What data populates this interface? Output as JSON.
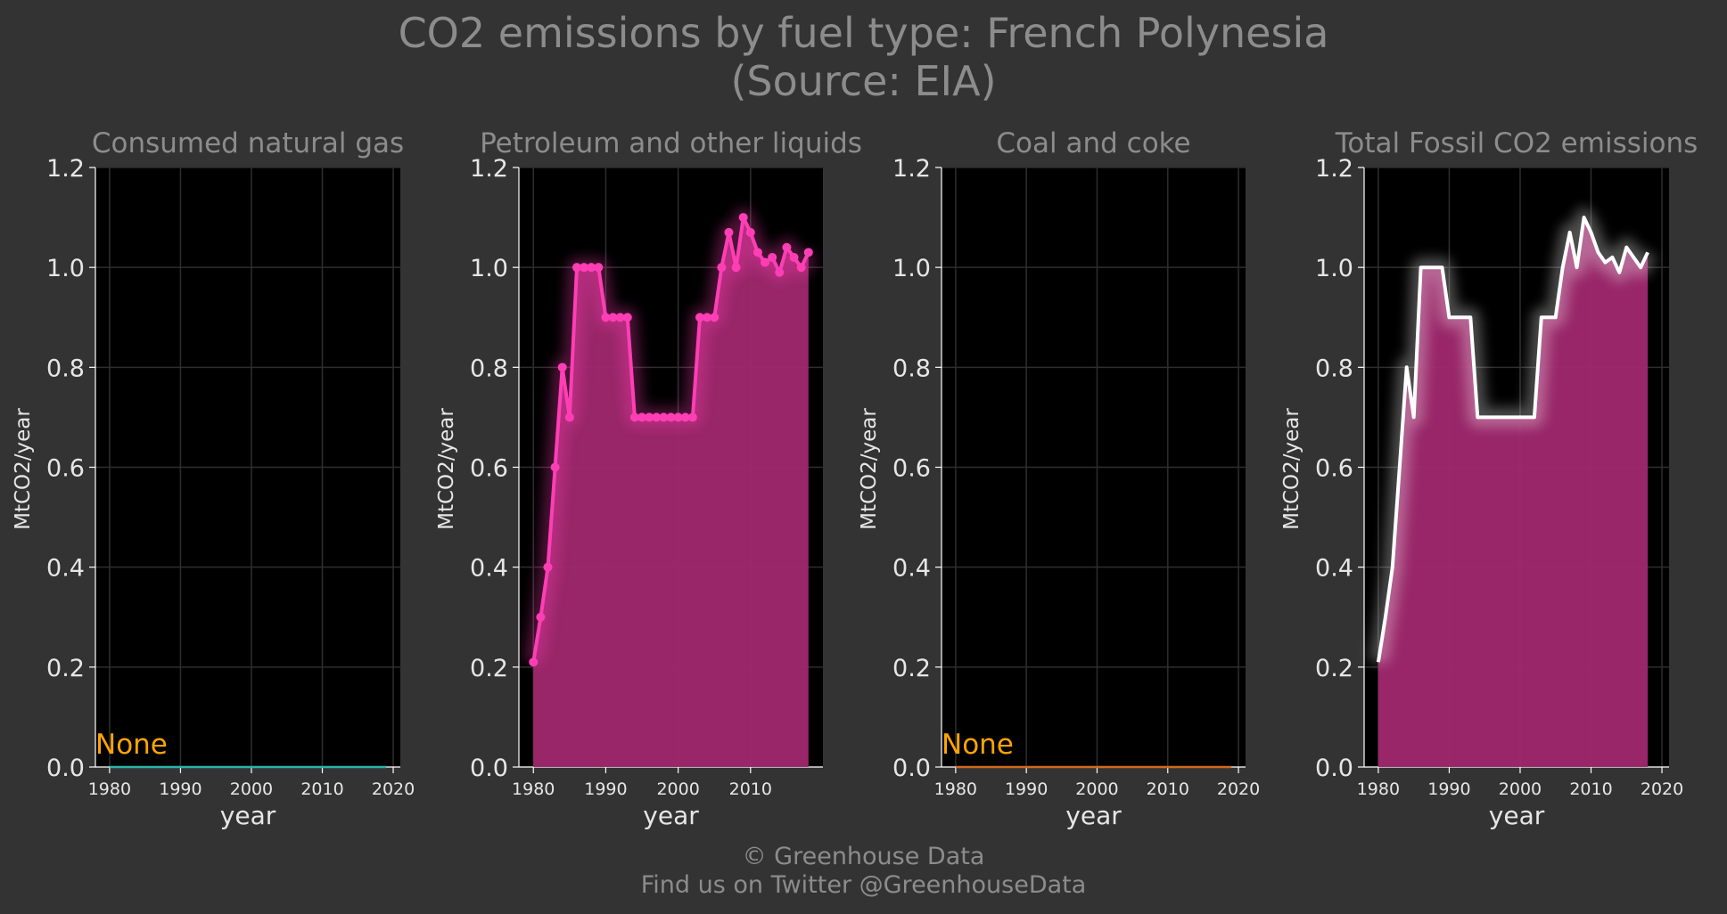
{
  "page": {
    "title": "CO2 emissions by fuel type: French Polynesia",
    "subtitle": "(Source: EIA)",
    "footer_line1": "© Greenhouse Data",
    "footer_line2": "Find us on Twitter @GreenhouseData"
  },
  "colors": {
    "background": "#333333",
    "plot_bg": "#000000",
    "grid": "#2e2e2e",
    "text": "#8c8c8c",
    "tick_text": "#e6e6e6",
    "petroleum": "#ff3eb5",
    "area_fill": "#a0286e",
    "gas_line": "#2ab5a5",
    "coal_line": "#d2691e",
    "none_label": "#ffa500",
    "total_line": "#ffffff"
  },
  "chart_data": [
    {
      "type": "line",
      "title": "Consumed natural gas",
      "xlabel": "year",
      "ylabel": "MtCO2/year",
      "xlim": [
        1978,
        2021
      ],
      "ylim": [
        0,
        1.2
      ],
      "xticks": [
        1980,
        1990,
        2000,
        2010,
        2020
      ],
      "yticks": [
        "0.0",
        "0.2",
        "0.4",
        "0.6",
        "0.8",
        "1.0",
        "1.2"
      ],
      "grid": true,
      "annotation": "None",
      "series": [
        {
          "x": [
            1980,
            2019
          ],
          "y": [
            0,
            0
          ],
          "color": "#2ab5a5"
        }
      ]
    },
    {
      "type": "area",
      "title": "Petroleum and other liquids",
      "xlabel": "year",
      "ylabel": "MtCO2/year",
      "xlim": [
        1978,
        2020
      ],
      "ylim": [
        0,
        1.2
      ],
      "xticks": [
        1980,
        1990,
        2000,
        2010
      ],
      "yticks": [
        "0.0",
        "0.2",
        "0.4",
        "0.6",
        "0.8",
        "1.0",
        "1.2"
      ],
      "grid": true,
      "series": [
        {
          "x": [
            1980,
            1981,
            1982,
            1983,
            1984,
            1985,
            1986,
            1987,
            1988,
            1989,
            1990,
            1991,
            1992,
            1993,
            1994,
            1995,
            1996,
            1997,
            1998,
            1999,
            2000,
            2001,
            2002,
            2003,
            2004,
            2005,
            2006,
            2007,
            2008,
            2009,
            2010,
            2011,
            2012,
            2013,
            2014,
            2015,
            2016,
            2017,
            2018
          ],
          "y": [
            0.21,
            0.3,
            0.4,
            0.6,
            0.8,
            0.7,
            1.0,
            1.0,
            1.0,
            1.0,
            0.9,
            0.9,
            0.9,
            0.9,
            0.7,
            0.7,
            0.7,
            0.7,
            0.7,
            0.7,
            0.7,
            0.7,
            0.7,
            0.9,
            0.9,
            0.9,
            1.0,
            1.07,
            1.0,
            1.1,
            1.07,
            1.03,
            1.01,
            1.02,
            0.99,
            1.04,
            1.02,
            1.0,
            1.03
          ],
          "color": "#ff3eb5",
          "markers": true
        }
      ]
    },
    {
      "type": "line",
      "title": "Coal and coke",
      "xlabel": "year",
      "ylabel": "MtCO2/year",
      "xlim": [
        1978,
        2021
      ],
      "ylim": [
        0,
        1.2
      ],
      "xticks": [
        1980,
        1990,
        2000,
        2010,
        2020
      ],
      "yticks": [
        "0.0",
        "0.2",
        "0.4",
        "0.6",
        "0.8",
        "1.0",
        "1.2"
      ],
      "grid": true,
      "annotation": "None",
      "series": [
        {
          "x": [
            1980,
            2019
          ],
          "y": [
            0,
            0
          ],
          "color": "#d2691e"
        }
      ]
    },
    {
      "type": "area",
      "title": "Total Fossil CO2 emissions",
      "xlabel": "year",
      "ylabel": "MtCO2/year",
      "xlim": [
        1978,
        2021
      ],
      "ylim": [
        0,
        1.2
      ],
      "xticks": [
        1980,
        1990,
        2000,
        2010,
        2020
      ],
      "yticks": [
        "0.0",
        "0.2",
        "0.4",
        "0.6",
        "0.8",
        "1.0",
        "1.2"
      ],
      "grid": true,
      "series": [
        {
          "x": [
            1980,
            1981,
            1982,
            1983,
            1984,
            1985,
            1986,
            1987,
            1988,
            1989,
            1990,
            1991,
            1992,
            1993,
            1994,
            1995,
            1996,
            1997,
            1998,
            1999,
            2000,
            2001,
            2002,
            2003,
            2004,
            2005,
            2006,
            2007,
            2008,
            2009,
            2010,
            2011,
            2012,
            2013,
            2014,
            2015,
            2016,
            2017,
            2018
          ],
          "y": [
            0.21,
            0.3,
            0.4,
            0.6,
            0.8,
            0.7,
            1.0,
            1.0,
            1.0,
            1.0,
            0.9,
            0.9,
            0.9,
            0.9,
            0.7,
            0.7,
            0.7,
            0.7,
            0.7,
            0.7,
            0.7,
            0.7,
            0.7,
            0.9,
            0.9,
            0.9,
            1.0,
            1.07,
            1.0,
            1.1,
            1.07,
            1.03,
            1.01,
            1.02,
            0.99,
            1.04,
            1.02,
            1.0,
            1.03
          ],
          "color": "#ffffff",
          "markers": false
        }
      ]
    }
  ]
}
